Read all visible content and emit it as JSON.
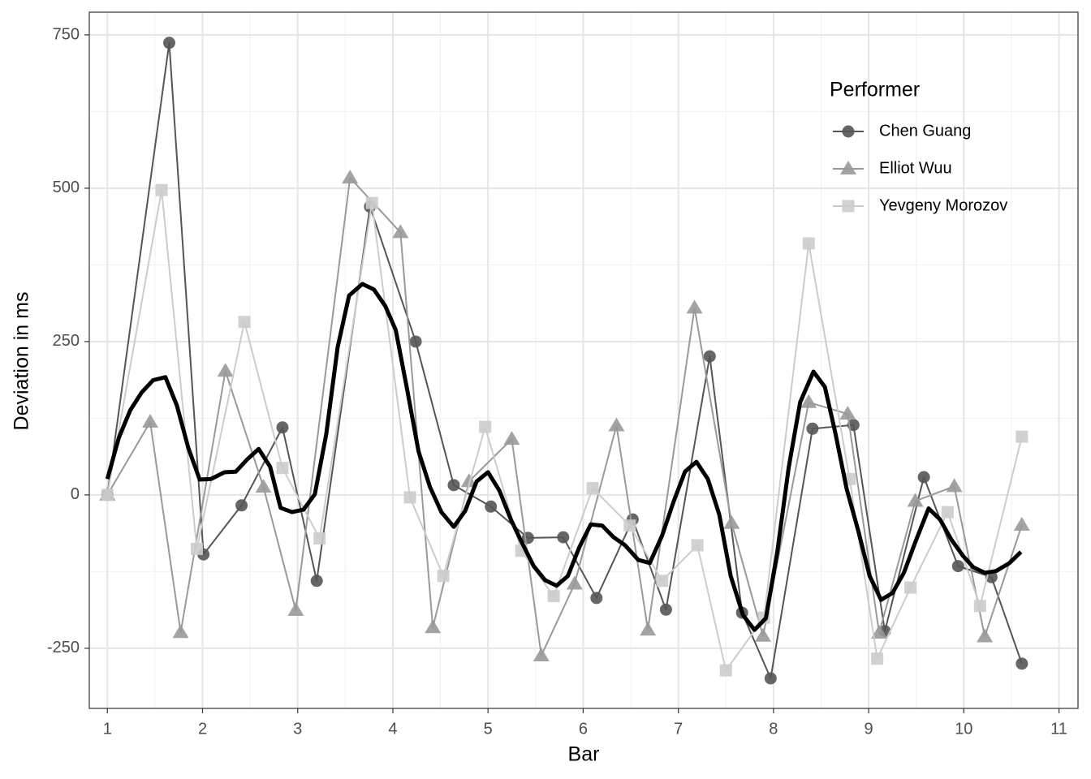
{
  "chart_data": {
    "type": "line",
    "x_label": "Bar",
    "y_label": "Deviation in ms",
    "legend_title": "Performer",
    "legend": "top-right",
    "grid": true,
    "xlim": [
      0.81,
      11.2
    ],
    "ylim": [
      -348,
      787
    ],
    "xticks": [
      1,
      2,
      3,
      4,
      5,
      6,
      7,
      8,
      9,
      10,
      11
    ],
    "yticks": [
      -250,
      0,
      250,
      500,
      750
    ],
    "series": [
      {
        "name": "Chen Guang",
        "color": "#555555",
        "marker": "circle",
        "x": [
          1,
          1.65,
          2.01,
          2.41,
          2.84,
          3.2,
          3.76,
          4.24,
          4.64,
          5.03,
          5.42,
          5.79,
          6.14,
          6.52,
          6.87,
          7.33,
          7.67,
          7.97,
          8.41,
          8.84,
          9.17,
          9.58,
          9.94,
          10.29,
          10.61
        ],
        "values": [
          0,
          737,
          -97,
          -17,
          110,
          -140,
          470,
          250,
          16,
          -19,
          -70,
          -69,
          -168,
          -40,
          -187,
          226,
          -192,
          -299,
          108,
          114,
          -222,
          29,
          -116,
          -134,
          -275
        ]
      },
      {
        "name": "Elliot Wuu",
        "color": "#999999",
        "marker": "triangle",
        "x": [
          1,
          1.45,
          1.77,
          2.24,
          2.64,
          2.98,
          3.55,
          4.08,
          4.42,
          4.8,
          5.25,
          5.56,
          5.91,
          6.35,
          6.68,
          7.17,
          7.56,
          7.89,
          8.37,
          8.78,
          9.11,
          9.49,
          9.9,
          10.22,
          10.61
        ],
        "values": [
          0,
          119,
          -224,
          202,
          13,
          -188,
          517,
          428,
          -216,
          22,
          91,
          -262,
          -145,
          113,
          -220,
          305,
          -46,
          -230,
          151,
          132,
          -225,
          -10,
          14,
          -231,
          -49
        ]
      },
      {
        "name": "Yevgeny Morozov",
        "color": "#cccccc",
        "marker": "square",
        "x": [
          1,
          1.57,
          1.94,
          2.44,
          2.84,
          3.23,
          3.78,
          4.18,
          4.53,
          4.97,
          5.35,
          5.69,
          6.1,
          6.49,
          6.83,
          7.2,
          7.5,
          7.9,
          8.37,
          8.8,
          9.09,
          9.44,
          9.83,
          10.17,
          10.61
        ],
        "values": [
          0,
          497,
          -88,
          282,
          44,
          -71,
          476,
          -4,
          -132,
          111,
          -91,
          -165,
          11,
          -50,
          -140,
          -82,
          -286,
          -200,
          410,
          26,
          -267,
          -151,
          -28,
          -181,
          95
        ]
      },
      {
        "color": "#000000",
        "marker": "none",
        "line_width": 5,
        "x": [
          1,
          1.12,
          1.24,
          1.36,
          1.48,
          1.61,
          1.73,
          1.85,
          1.97,
          2.09,
          2.23,
          2.35,
          2.47,
          2.59,
          2.71,
          2.82,
          2.94,
          3.06,
          3.18,
          3.3,
          3.42,
          3.54,
          3.68,
          3.8,
          3.92,
          4.03,
          4.15,
          4.27,
          4.39,
          4.51,
          4.64,
          4.76,
          4.88,
          5,
          5.12,
          5.24,
          5.36,
          5.48,
          5.6,
          5.72,
          5.84,
          5.96,
          6.08,
          6.2,
          6.32,
          6.44,
          6.58,
          6.7,
          6.83,
          6.95,
          7.07,
          7.19,
          7.31,
          7.43,
          7.55,
          7.68,
          7.8,
          7.92,
          8.04,
          8.16,
          8.28,
          8.42,
          8.54,
          8.65,
          8.77,
          8.89,
          9.01,
          9.13,
          9.25,
          9.37,
          9.49,
          9.63,
          9.75,
          9.87,
          9.99,
          10.1,
          10.22,
          10.34,
          10.48,
          10.6
        ],
        "values": [
          26,
          93,
          138,
          167,
          187,
          192,
          146,
          77,
          25,
          26,
          37,
          38,
          58,
          75,
          46,
          -21,
          -28,
          -24,
          1,
          99,
          241,
          325,
          344,
          335,
          308,
          269,
          172,
          71,
          13,
          -28,
          -52,
          -26,
          22,
          37,
          7,
          -40,
          -79,
          -116,
          -139,
          -148,
          -132,
          -85,
          -48,
          -50,
          -69,
          -82,
          -106,
          -111,
          -66,
          -11,
          38,
          54,
          26,
          -32,
          -132,
          -196,
          -220,
          -201,
          -93,
          45,
          151,
          201,
          176,
          101,
          9,
          -58,
          -132,
          -171,
          -160,
          -127,
          -77,
          -22,
          -40,
          -73,
          -99,
          -118,
          -127,
          -124,
          -111,
          -93
        ]
      }
    ]
  }
}
